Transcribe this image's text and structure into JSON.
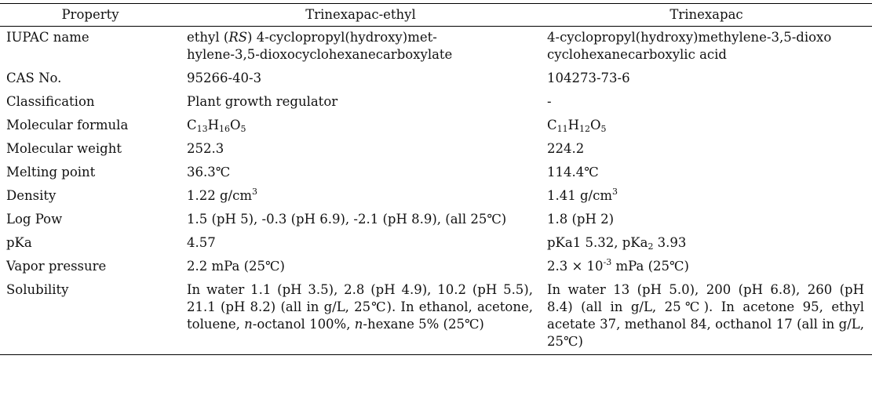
{
  "header": {
    "property": "Property",
    "col1": "Trinexapac-ethyl",
    "col2": "Trinexapac"
  },
  "rows": {
    "iupac": {
      "label": "IUPAC name",
      "a_pre": "ethyl (",
      "a_italic": "RS",
      "a_line1_post": ") 4-cyclopropyl(hydroxy)met-",
      "a_line2": "hylene-3,5-dioxocyclohexanecarboxylate",
      "b_line1": "4-cyclopropyl(hydroxy)methylene-3,5-dioxo",
      "b_line2": "cyclohexanecarboxylic acid"
    },
    "cas": {
      "label": "CAS No.",
      "a": "95266-40-3",
      "b": "104273-73-6"
    },
    "classification": {
      "label": "Classification",
      "a": "Plant growth regulator",
      "b": "-"
    },
    "formula": {
      "label": "Molecular formula",
      "a": {
        "c": "C",
        "cn": "13",
        "h": "H",
        "hn": "16",
        "o": "O",
        "on": "5"
      },
      "b": {
        "c": "C",
        "cn": "11",
        "h": "H",
        "hn": "12",
        "o": "O",
        "on": "5"
      }
    },
    "weight": {
      "label": "Molecular weight",
      "a": "252.3",
      "b": "224.2"
    },
    "melting": {
      "label": "Melting point",
      "a": "36.3℃",
      "b": "114.4℃"
    },
    "density": {
      "label": "Density",
      "a": "1.22 g/cm",
      "a_sup": "3",
      "b": "1.41 g/cm",
      "b_sup": "3"
    },
    "logpow": {
      "label": "Log Pow",
      "a": "1.5 (pH 5), -0.3 (pH 6.9), -2.1 (pH 8.9), (all 25℃)",
      "b": "1.8 (pH 2)"
    },
    "pka": {
      "label": "pKa",
      "a": "4.57",
      "b_pre": "pKa1 5.32, pKa",
      "b_sub": "2",
      "b_post": " 3.93"
    },
    "vapor": {
      "label": "Vapor pressure",
      "a": "2.2 mPa (25℃)",
      "b_pre": "2.3 × 10",
      "b_sup": "-3",
      "b_post": " mPa (25℃)"
    },
    "solubility": {
      "label": "Solubility",
      "a_1": "In water 1.1 (pH 3.5), 2.8 (pH 4.9), 10.2 (pH 5.5), 21.1 (pH 8.2) (all in g/L, 25℃). In ethanol, acetone, toluene, ",
      "a_i1": "n",
      "a_2": "-octanol 100%, ",
      "a_i2": "n",
      "a_3": "-hexane 5% (25℃)",
      "b": "In water 13 (pH 5.0), 200 (pH 6.8), 260 (pH 8.4) (all in g/L, 25℃). In acetone 95, ethyl acetate 37, methanol 84, octhanol 17  (all in g/L, 25℃)"
    }
  }
}
